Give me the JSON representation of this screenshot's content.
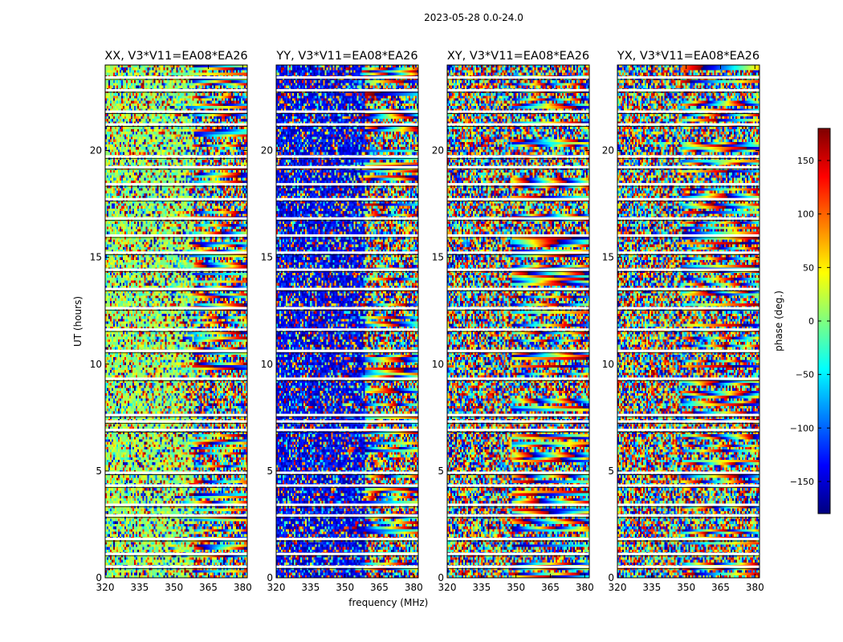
{
  "figure_title": "2023-05-28 0.0-24.0",
  "chart_data": [
    {
      "type": "heatmap",
      "title": "XX, V3*V11=EA08*EA26",
      "xlabel": "",
      "ylabel": "UT (hours)",
      "xlim": [
        320,
        382
      ],
      "ylim": [
        0,
        24
      ],
      "xticks": [
        320,
        335,
        350,
        365,
        380
      ],
      "yticks": [
        0,
        5,
        10,
        15,
        20
      ],
      "value": "phase (deg.)",
      "bias_value": 10,
      "bias_strength": 0.55,
      "seed": 11
    },
    {
      "type": "heatmap",
      "title": "YY, V3*V11=EA08*EA26",
      "xlabel": "frequency (MHz)",
      "ylabel": "",
      "xlim": [
        320,
        382
      ],
      "ylim": [
        0,
        24
      ],
      "xticks": [
        320,
        335,
        350,
        365,
        380
      ],
      "yticks": [
        0,
        5,
        10,
        15,
        20
      ],
      "value": "phase (deg.)",
      "bias_value": -140,
      "bias_strength": 0.6,
      "seed": 23
    },
    {
      "type": "heatmap",
      "title": "XY, V3*V11=EA08*EA26",
      "xlabel": "",
      "ylabel": "",
      "xlim": [
        320,
        382
      ],
      "ylim": [
        0,
        24
      ],
      "xticks": [
        320,
        335,
        350,
        365,
        380
      ],
      "yticks": [
        0,
        5,
        10,
        15,
        20
      ],
      "value": "phase (deg.)",
      "bias_value": 0,
      "bias_strength": 0.0,
      "seed": 37
    },
    {
      "type": "heatmap",
      "title": "YX, V3*V11=EA08*EA26",
      "xlabel": "",
      "ylabel": "",
      "xlim": [
        320,
        382
      ],
      "ylim": [
        0,
        24
      ],
      "xticks": [
        320,
        335,
        350,
        365,
        380
      ],
      "yticks": [
        0,
        5,
        10,
        15,
        20
      ],
      "value": "phase (deg.)",
      "bias_value": 0,
      "bias_strength": 0.0,
      "seed": 53
    }
  ],
  "shared": {
    "flagged_ut_hours": [
      0.5,
      1.1,
      1.8,
      2.9,
      3.4,
      4.3,
      4.9,
      6.9,
      7.3,
      7.6,
      9.3,
      10.6,
      11.6,
      12.6,
      13.5,
      14.4,
      15.2,
      16.0,
      16.8,
      17.7,
      18.4,
      19.2,
      19.7,
      21.2,
      21.8,
      22.8,
      23.4
    ],
    "band_edge_mhz": 359
  },
  "colorbar": {
    "label": "phase (deg.)",
    "range": [
      -180,
      180
    ],
    "ticks": [
      {
        "value": 150,
        "label": "150"
      },
      {
        "value": 100,
        "label": "100"
      },
      {
        "value": 50,
        "label": "50"
      },
      {
        "value": 0,
        "label": "0"
      },
      {
        "value": -50,
        "label": "−50"
      },
      {
        "value": -100,
        "label": "−100"
      },
      {
        "value": -150,
        "label": "−150"
      }
    ],
    "colormap": "jet",
    "colors": [
      "#00007f",
      "#0000ff",
      "#007fff",
      "#00ffff",
      "#7fff7f",
      "#ffff00",
      "#ff7f00",
      "#ff0000",
      "#7f0000"
    ]
  }
}
